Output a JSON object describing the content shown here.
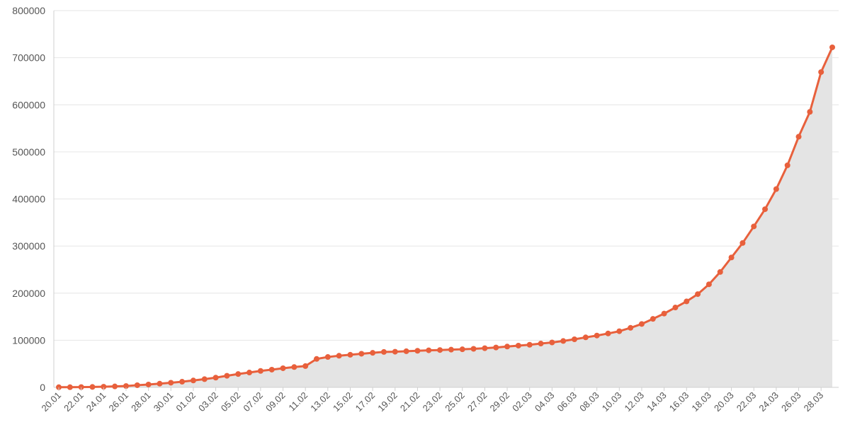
{
  "chart_data": {
    "type": "area",
    "title": "",
    "xlabel": "",
    "ylabel": "",
    "ylim": [
      0,
      800000
    ],
    "y_ticks": [
      "0",
      "100000",
      "200000",
      "300000",
      "400000",
      "500000",
      "600000",
      "700000",
      "800000"
    ],
    "grid": true,
    "legend": "none",
    "colors": {
      "line": "#e8603c",
      "fill": "#e4e4e4",
      "grid": "#e6e6e6",
      "axis": "#cfcfcf"
    },
    "categories": [
      "20.01",
      "21.01",
      "22.01",
      "23.01",
      "24.01",
      "25.01",
      "26.01",
      "27.01",
      "28.01",
      "29.01",
      "30.01",
      "31.01",
      "01.02",
      "02.02",
      "03.02",
      "04.02",
      "05.02",
      "06.02",
      "07.02",
      "08.02",
      "09.02",
      "10.02",
      "11.02",
      "12.02",
      "13.02",
      "14.02",
      "15.02",
      "16.02",
      "17.02",
      "18.02",
      "19.02",
      "20.02",
      "21.02",
      "22.02",
      "23.02",
      "24.02",
      "25.02",
      "26.02",
      "27.02",
      "28.02",
      "29.02",
      "01.03",
      "02.03",
      "03.03",
      "04.03",
      "05.03",
      "06.03",
      "07.03",
      "08.03",
      "09.03",
      "10.03",
      "11.03",
      "12.03",
      "13.03",
      "14.03",
      "15.03",
      "16.03",
      "17.03",
      "18.03",
      "19.03",
      "20.03",
      "21.03",
      "22.03",
      "23.03",
      "24.03",
      "25.03",
      "26.03",
      "27.03",
      "28.03",
      "29.03"
    ],
    "x_tick_labels": [
      "20.01",
      "22.01",
      "24.01",
      "26.01",
      "28.01",
      "30.01",
      "01.02",
      "03.02",
      "05.02",
      "07.02",
      "09.02",
      "11.02",
      "13.02",
      "15.02",
      "17.02",
      "19.02",
      "21.02",
      "23.02",
      "25.02",
      "27.02",
      "29.02",
      "02.03",
      "04.03",
      "06.03",
      "08.03",
      "10.03",
      "12.03",
      "14.03",
      "16.03",
      "18.03",
      "20.03",
      "22.03",
      "24.03",
      "26.03",
      "28.03"
    ],
    "series": [
      {
        "values": [
          282,
          314,
          581,
          846,
          1320,
          2014,
          2798,
          4593,
          6065,
          7818,
          9826,
          11953,
          14557,
          17391,
          20630,
          24554,
          28276,
          31481,
          34886,
          37558,
          40554,
          43103,
          45171,
          60374,
          64449,
          67100,
          69197,
          71329,
          73332,
          75184,
          75700,
          76677,
          77673,
          78651,
          79205,
          80087,
          80828,
          81820,
          83112,
          84615,
          86604,
          88585,
          90443,
          93016,
          95314,
          98425,
          102050,
          106099,
          109991,
          114381,
          119171,
          126380,
          134562,
          145336,
          156653,
          169521,
          182500,
          198000,
          218800,
          245000,
          275800,
          306500,
          341700,
          378300,
          421000,
          471500,
          532200,
          585000,
          669500,
          722000
        ]
      }
    ]
  }
}
